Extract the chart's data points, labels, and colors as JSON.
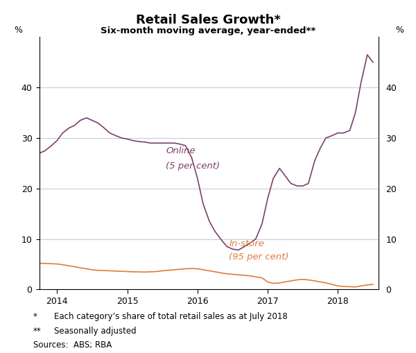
{
  "title": "Retail Sales Growth*",
  "subtitle": "Six-month moving average, year-ended**",
  "ylabel_left": "%",
  "ylabel_right": "%",
  "ylim": [
    0,
    50
  ],
  "yticks": [
    0,
    10,
    20,
    30,
    40
  ],
  "footnote1_bullet": "*",
  "footnote1_text": "Each category’s share of total retail sales as at July 2018",
  "footnote2_bullet": "**",
  "footnote2_text": "Seasonally adjusted",
  "footnote3": "Sources:  ABS; RBA",
  "online_color": "#7B3F6E",
  "instore_color": "#E07B39",
  "online_label_line1": "Online",
  "online_label_line2": "(5 per cent)",
  "instore_label_line1": "In-store",
  "instore_label_line2": "(95 per cent)",
  "online_x": [
    2013.75,
    2013.83,
    2013.92,
    2014.0,
    2014.08,
    2014.17,
    2014.25,
    2014.33,
    2014.42,
    2014.5,
    2014.58,
    2014.67,
    2014.75,
    2014.83,
    2014.92,
    2015.0,
    2015.08,
    2015.17,
    2015.25,
    2015.33,
    2015.42,
    2015.5,
    2015.58,
    2015.67,
    2015.75,
    2015.83,
    2015.92,
    2016.0,
    2016.08,
    2016.17,
    2016.25,
    2016.33,
    2016.42,
    2016.5,
    2016.58,
    2016.67,
    2016.75,
    2016.83,
    2016.92,
    2017.0,
    2017.08,
    2017.17,
    2017.25,
    2017.33,
    2017.42,
    2017.5,
    2017.58,
    2017.67,
    2017.75,
    2017.83,
    2017.92,
    2018.0,
    2018.08,
    2018.17,
    2018.25,
    2018.33,
    2018.42,
    2018.5
  ],
  "online_y": [
    27.0,
    27.5,
    28.5,
    29.5,
    31.0,
    32.0,
    32.5,
    33.5,
    34.0,
    33.5,
    33.0,
    32.0,
    31.0,
    30.5,
    30.0,
    29.8,
    29.5,
    29.3,
    29.2,
    29.0,
    29.0,
    29.0,
    29.0,
    29.0,
    28.8,
    28.5,
    26.0,
    22.0,
    17.0,
    13.5,
    11.5,
    10.0,
    8.5,
    8.0,
    7.8,
    8.5,
    9.2,
    10.0,
    13.0,
    18.0,
    22.0,
    24.0,
    22.5,
    21.0,
    20.5,
    20.5,
    21.0,
    25.5,
    28.0,
    30.0,
    30.5,
    31.0,
    31.0,
    31.5,
    35.0,
    41.0,
    46.5,
    45.0
  ],
  "instore_x": [
    2013.75,
    2013.83,
    2013.92,
    2014.0,
    2014.08,
    2014.17,
    2014.25,
    2014.33,
    2014.42,
    2014.5,
    2014.58,
    2014.67,
    2014.75,
    2014.83,
    2014.92,
    2015.0,
    2015.08,
    2015.17,
    2015.25,
    2015.33,
    2015.42,
    2015.5,
    2015.58,
    2015.67,
    2015.75,
    2015.83,
    2015.92,
    2016.0,
    2016.08,
    2016.17,
    2016.25,
    2016.33,
    2016.42,
    2016.5,
    2016.58,
    2016.67,
    2016.75,
    2016.83,
    2016.92,
    2017.0,
    2017.08,
    2017.17,
    2017.25,
    2017.33,
    2017.42,
    2017.5,
    2017.58,
    2017.67,
    2017.75,
    2017.83,
    2017.92,
    2018.0,
    2018.08,
    2018.17,
    2018.25,
    2018.33,
    2018.42,
    2018.5
  ],
  "instore_y": [
    5.2,
    5.15,
    5.1,
    5.05,
    4.9,
    4.7,
    4.5,
    4.3,
    4.1,
    3.9,
    3.8,
    3.75,
    3.7,
    3.65,
    3.6,
    3.55,
    3.5,
    3.48,
    3.45,
    3.5,
    3.55,
    3.7,
    3.8,
    3.9,
    4.0,
    4.1,
    4.15,
    4.1,
    3.9,
    3.7,
    3.5,
    3.3,
    3.1,
    3.0,
    2.9,
    2.8,
    2.7,
    2.5,
    2.3,
    1.5,
    1.2,
    1.3,
    1.5,
    1.7,
    1.9,
    2.0,
    1.9,
    1.7,
    1.5,
    1.3,
    1.0,
    0.7,
    0.6,
    0.55,
    0.5,
    0.7,
    0.9,
    1.0
  ],
  "xlim": [
    2013.75,
    2018.58
  ],
  "xticks": [
    2014,
    2015,
    2016,
    2017,
    2018
  ],
  "xticklabels": [
    "2014",
    "2015",
    "2016",
    "2017",
    "2018"
  ],
  "grid_color": "#CCCCCC",
  "bg_color": "#FFFFFF"
}
